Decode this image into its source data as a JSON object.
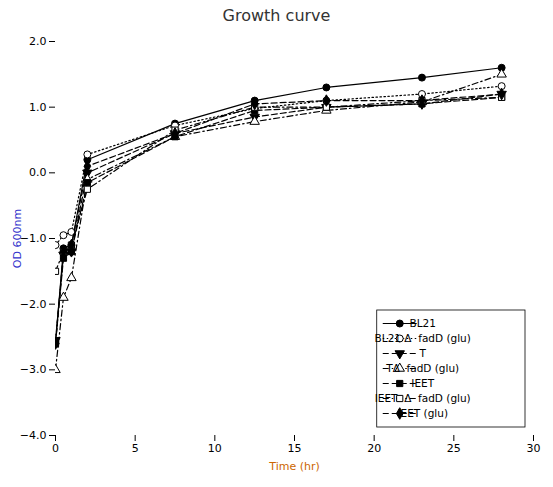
{
  "chart_data": {
    "type": "line",
    "title": "Growth curve",
    "xlabel": "Time (hr)",
    "ylabel": "OD 600nm",
    "xlim": [
      0,
      30
    ],
    "ylim": [
      -4,
      2
    ],
    "xticks": [
      0,
      5,
      10,
      15,
      20,
      25,
      30
    ],
    "yticks": [
      -4,
      -3,
      -2,
      -1,
      0,
      1,
      2
    ],
    "grid": false,
    "legend": "lower right",
    "x": [
      0,
      0.5,
      1,
      2,
      7.5,
      12.5,
      17,
      23,
      28
    ],
    "series": [
      {
        "name": "BL21",
        "color": "#000000",
        "line_style": "solid",
        "marker": "circle",
        "values": [
          -2.6,
          -1.15,
          -1.1,
          0.2,
          0.75,
          1.1,
          1.3,
          1.45,
          1.6
        ]
      },
      {
        "name": "BL21 Δ  fadD (glu)",
        "color": "#000000",
        "line_style": "dotted",
        "marker": "circle_open",
        "values": [
          -1.1,
          -0.95,
          -0.9,
          0.28,
          0.72,
          0.98,
          1.1,
          1.2,
          1.32
        ]
      },
      {
        "name": "T",
        "color": "#000000",
        "line_style": "dashed",
        "marker": "triangle_down",
        "values": [
          -2.55,
          -1.25,
          -1.2,
          0.0,
          0.6,
          0.85,
          1.0,
          1.05,
          1.2
        ]
      },
      {
        "name": "TΔ  fadD (glu)",
        "color": "#000000",
        "line_style": "dashdot",
        "marker": "triangle_up_open",
        "values": [
          -3.0,
          -1.9,
          -1.6,
          -0.1,
          0.55,
          0.78,
          0.95,
          1.08,
          1.5
        ]
      },
      {
        "name": "IEET",
        "color": "#000000",
        "line_style": "dashed",
        "marker": "square",
        "values": [
          -2.6,
          -1.3,
          -1.2,
          -0.15,
          0.55,
          0.95,
          1.0,
          1.05,
          1.15
        ]
      },
      {
        "name": "IEET  Δ  fadD (glu)",
        "color": "#000000",
        "line_style": "dashdot",
        "marker": "square_open",
        "values": [
          -1.5,
          -1.2,
          -1.1,
          -0.25,
          0.65,
          1.0,
          1.0,
          1.1,
          1.15
        ]
      },
      {
        "name": "IEET (glu)",
        "color": "#000000",
        "line_style": "dashed",
        "marker": "diamond",
        "values": [
          -2.6,
          -1.2,
          -1.1,
          0.1,
          0.6,
          1.05,
          1.1,
          1.1,
          1.2
        ]
      }
    ]
  }
}
